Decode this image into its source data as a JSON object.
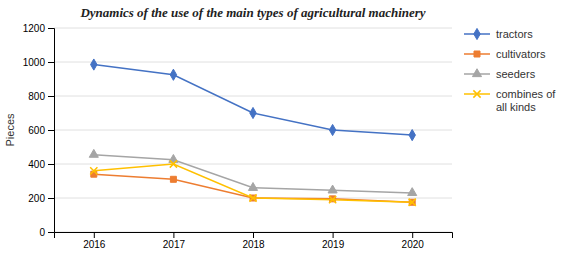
{
  "chart_data": {
    "type": "line",
    "title": "Dynamics of the use of the main types of agricultural machinery",
    "ylabel": "Pieces",
    "x": [
      2016,
      2017,
      2018,
      2019,
      2020
    ],
    "xlim": [
      2015.5,
      2020.5
    ],
    "xticks": [
      2016,
      2017,
      2018,
      2019,
      2020
    ],
    "ylim": [
      0,
      1200
    ],
    "yticks": [
      0,
      200,
      400,
      600,
      800,
      1000,
      1200
    ],
    "grid": true,
    "legend": "right",
    "series": [
      {
        "name": "tractors",
        "color": "#4472C4",
        "marker": "diamond",
        "values": [
          985,
          925,
          700,
          600,
          570
        ]
      },
      {
        "name": "cultivators",
        "color": "#ED7D31",
        "marker": "square",
        "values": [
          340,
          310,
          200,
          195,
          175
        ]
      },
      {
        "name": "seeders",
        "color": "#A5A5A5",
        "marker": "triangle",
        "values": [
          455,
          425,
          260,
          245,
          230
        ]
      },
      {
        "name": "combines of\nall kinds",
        "color": "#FFC000",
        "marker": "x",
        "values": [
          360,
          400,
          200,
          190,
          175
        ]
      }
    ]
  }
}
